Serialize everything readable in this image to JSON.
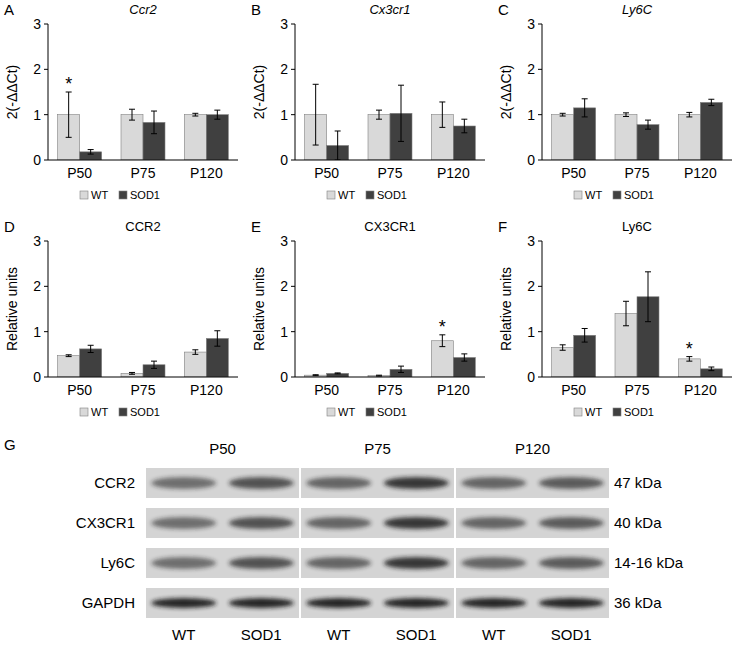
{
  "chart_data": [
    {
      "type": "bar",
      "title": "Ccr2",
      "ylabel": "2(-ΔΔCt)",
      "categories": [
        "P50",
        "P75",
        "P120"
      ],
      "series": [
        {
          "name": "WT",
          "color": "#d9d9d9",
          "values": [
            1.0,
            1.0,
            1.0
          ],
          "errors": [
            0.5,
            0.12,
            0.03
          ]
        },
        {
          "name": "SOD1",
          "color": "#404040",
          "values": [
            0.18,
            0.83,
            1.0
          ],
          "errors": [
            0.05,
            0.25,
            0.1
          ]
        }
      ],
      "ylim": [
        0,
        3
      ],
      "yticks": [
        0,
        1,
        2,
        3
      ],
      "grid": false,
      "legend": "bottom",
      "annotations": [
        {
          "text": "A"
        },
        {
          "text": "*",
          "series": 0,
          "category": 0
        }
      ]
    },
    {
      "type": "bar",
      "title": "Cx3cr1",
      "ylabel": "2(-ΔΔCt)",
      "categories": [
        "P50",
        "P75",
        "P120"
      ],
      "series": [
        {
          "name": "WT",
          "color": "#d9d9d9",
          "values": [
            1.0,
            1.0,
            1.0
          ],
          "errors": [
            0.67,
            0.1,
            0.28
          ]
        },
        {
          "name": "SOD1",
          "color": "#404040",
          "values": [
            0.32,
            1.03,
            0.75
          ],
          "errors": [
            0.32,
            0.62,
            0.15
          ]
        }
      ],
      "ylim": [
        0,
        3
      ],
      "yticks": [
        0,
        1,
        2,
        3
      ],
      "grid": false,
      "legend": "bottom",
      "annotations": [
        {
          "text": "B"
        }
      ]
    },
    {
      "type": "bar",
      "title": "Ly6C",
      "ylabel": "2(-ΔΔCt)",
      "categories": [
        "P50",
        "P75",
        "P120"
      ],
      "series": [
        {
          "name": "WT",
          "color": "#d9d9d9",
          "values": [
            1.0,
            1.0,
            1.0
          ],
          "errors": [
            0.03,
            0.04,
            0.05
          ]
        },
        {
          "name": "SOD1",
          "color": "#404040",
          "values": [
            1.15,
            0.78,
            1.27
          ],
          "errors": [
            0.2,
            0.1,
            0.07
          ]
        }
      ],
      "ylim": [
        0,
        3
      ],
      "yticks": [
        0,
        1,
        2,
        3
      ],
      "grid": false,
      "legend": "bottom",
      "annotations": [
        {
          "text": "C"
        }
      ]
    },
    {
      "type": "bar",
      "title": "CCR2",
      "ylabel": "Relative units",
      "categories": [
        "P50",
        "P75",
        "P120"
      ],
      "series": [
        {
          "name": "WT",
          "color": "#d9d9d9",
          "values": [
            0.47,
            0.08,
            0.55
          ],
          "errors": [
            0.02,
            0.02,
            0.05
          ]
        },
        {
          "name": "SOD1",
          "color": "#404040",
          "values": [
            0.62,
            0.27,
            0.85
          ],
          "errors": [
            0.08,
            0.08,
            0.17
          ]
        }
      ],
      "ylim": [
        0,
        3
      ],
      "yticks": [
        0,
        1,
        2,
        3
      ],
      "grid": false,
      "legend": "bottom",
      "annotations": [
        {
          "text": "D"
        }
      ]
    },
    {
      "type": "bar",
      "title": "CX3CR1",
      "ylabel": "Relative units",
      "categories": [
        "P50",
        "P75",
        "P120"
      ],
      "series": [
        {
          "name": "WT",
          "color": "#d9d9d9",
          "values": [
            0.04,
            0.03,
            0.8
          ],
          "errors": [
            0.01,
            0.01,
            0.13
          ]
        },
        {
          "name": "SOD1",
          "color": "#404040",
          "values": [
            0.08,
            0.17,
            0.43
          ],
          "errors": [
            0.01,
            0.07,
            0.08
          ]
        }
      ],
      "ylim": [
        0,
        3
      ],
      "yticks": [
        0,
        1,
        2,
        3
      ],
      "grid": false,
      "legend": "bottom",
      "annotations": [
        {
          "text": "E"
        },
        {
          "text": "*",
          "series": 0,
          "category": 2
        }
      ]
    },
    {
      "type": "bar",
      "title": "Ly6C",
      "ylabel": "Relative units",
      "categories": [
        "P50",
        "P75",
        "P120"
      ],
      "series": [
        {
          "name": "WT",
          "color": "#d9d9d9",
          "values": [
            0.65,
            1.4,
            0.4
          ],
          "errors": [
            0.06,
            0.27,
            0.05
          ]
        },
        {
          "name": "SOD1",
          "color": "#404040",
          "values": [
            0.92,
            1.77,
            0.18
          ],
          "errors": [
            0.15,
            0.55,
            0.04
          ]
        }
      ],
      "ylim": [
        0,
        3
      ],
      "yticks": [
        0,
        1,
        2,
        3
      ],
      "grid": false,
      "legend": "bottom",
      "annotations": [
        {
          "text": "F"
        },
        {
          "text": "*",
          "series": 0,
          "category": 2
        }
      ]
    }
  ],
  "blot": {
    "title": "G",
    "time_points": [
      "P50",
      "P75",
      "P120"
    ],
    "lanes": [
      "WT",
      "SOD1",
      "WT",
      "SOD1",
      "WT",
      "SOD1"
    ],
    "rows": [
      {
        "label": "CCR2",
        "size": "47 kDa"
      },
      {
        "label": "CX3CR1",
        "size": "40 kDa"
      },
      {
        "label": "Ly6C",
        "size": "14-16 kDa"
      },
      {
        "label": "GAPDH",
        "size": "36 kDa"
      }
    ]
  }
}
